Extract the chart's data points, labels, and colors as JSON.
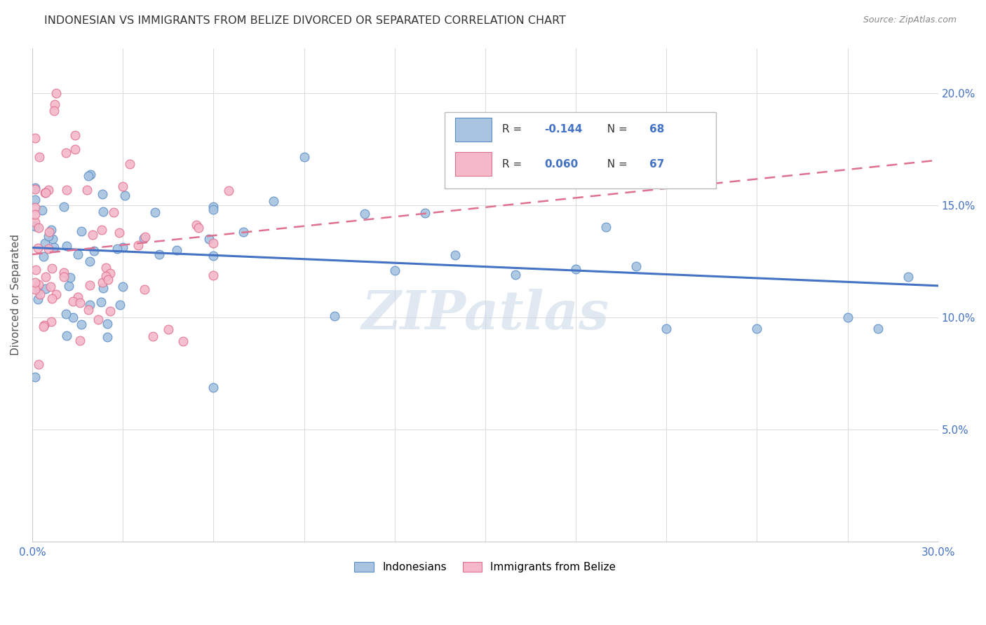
{
  "title": "INDONESIAN VS IMMIGRANTS FROM BELIZE DIVORCED OR SEPARATED CORRELATION CHART",
  "source": "Source: ZipAtlas.com",
  "ylabel": "Divorced or Separated",
  "xlim": [
    0.0,
    0.3
  ],
  "ylim": [
    0.0,
    0.22
  ],
  "blue_R": -0.144,
  "blue_N": 68,
  "pink_R": 0.06,
  "pink_N": 67,
  "blue_fill": "#a8c4e0",
  "pink_fill": "#f4b8c8",
  "blue_edge": "#5b8dc8",
  "pink_edge": "#e07090",
  "blue_line": "#4472c4",
  "pink_line": "#e07090",
  "watermark": "ZIPatlas",
  "blue_trend_x": [
    0.0,
    0.3
  ],
  "blue_trend_y": [
    0.131,
    0.114
  ],
  "pink_trend_x": [
    0.0,
    0.3
  ],
  "pink_trend_y": [
    0.128,
    0.17
  ],
  "legend_text_color": "#333333",
  "legend_val_color": "#4472c4",
  "grid_color": "#dddddd",
  "tick_color": "#4472c4",
  "title_color": "#333333",
  "source_color": "#888888"
}
